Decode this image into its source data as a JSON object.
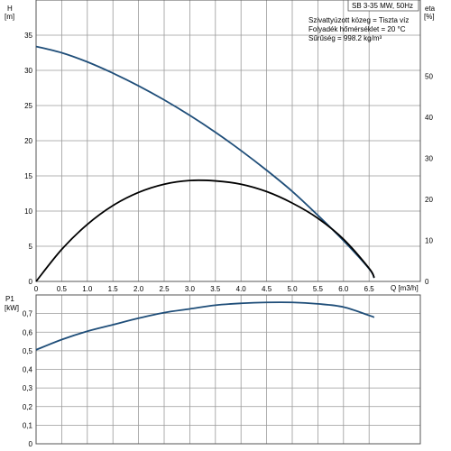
{
  "chart_data": [
    {
      "type": "line",
      "title": "",
      "x_label": "Q [m3/h]",
      "y_label_name": "H",
      "y_label_unit": "[m]",
      "y2_label_name": "eta",
      "y2_label_unit": "[%]",
      "x_ticks": [
        "0",
        "0.5",
        "1.0",
        "1.5",
        "2.0",
        "2.5",
        "3.0",
        "3.5",
        "4.0",
        "4.5",
        "5.0",
        "5.5",
        "6.0",
        "6.5"
      ],
      "y_ticks": [
        "0",
        "5",
        "10",
        "15",
        "20",
        "25",
        "30",
        "35"
      ],
      "y2_ticks": [
        "0",
        "10",
        "20",
        "30",
        "40",
        "50"
      ],
      "xlim": [
        0,
        7.5
      ],
      "ylim": [
        0,
        40
      ],
      "y2lim": [
        0,
        68.6
      ],
      "info_lines": [
        "SB 3-35 MW, 50Hz",
        "Szivattyúzott közeg = Tiszta víz",
        "Folyadék hőmérséklet = 20 °C",
        "Sűrűség = 998.2 kg/m³"
      ],
      "series": [
        {
          "key": "H",
          "axis": "left",
          "color": "#1f4e79",
          "x": [
            0,
            0.5,
            1.0,
            1.5,
            2.0,
            2.5,
            3.0,
            3.5,
            4.0,
            4.5,
            5.0,
            5.5,
            6.0,
            6.5,
            6.6
          ],
          "y": [
            33.4,
            32.5,
            31.2,
            29.6,
            27.8,
            25.8,
            23.6,
            21.2,
            18.6,
            15.8,
            12.8,
            9.4,
            5.8,
            1.8,
            0.5
          ]
        },
        {
          "key": "eta",
          "axis": "right",
          "color": "#000000",
          "x": [
            0,
            0.5,
            1.0,
            1.5,
            2.0,
            2.5,
            3.0,
            3.5,
            4.0,
            4.5,
            5.0,
            5.5,
            6.0,
            6.5,
            6.6
          ],
          "y": [
            0,
            7.8,
            13.9,
            18.5,
            21.7,
            23.7,
            24.6,
            24.5,
            23.7,
            21.9,
            19.1,
            15.4,
            10.3,
            3.2,
            0.9
          ]
        }
      ]
    },
    {
      "type": "line",
      "title": "",
      "y_label_name": "P1",
      "y_label_unit": "[kW]",
      "y_ticks": [
        "0",
        "0,1",
        "0,2",
        "0,3",
        "0,4",
        "0,5",
        "0,6",
        "0,7"
      ],
      "xlim": [
        0,
        7.5
      ],
      "ylim": [
        0,
        0.8
      ],
      "series": [
        {
          "key": "P1",
          "axis": "left",
          "color": "#1f4e79",
          "x": [
            0,
            0.5,
            1.0,
            1.5,
            2.0,
            2.5,
            3.0,
            3.5,
            4.0,
            4.5,
            5.0,
            5.5,
            6.0,
            6.5,
            6.6
          ],
          "y": [
            0.505,
            0.56,
            0.605,
            0.64,
            0.675,
            0.705,
            0.725,
            0.745,
            0.755,
            0.76,
            0.76,
            0.752,
            0.735,
            0.69,
            0.68
          ]
        }
      ]
    }
  ]
}
